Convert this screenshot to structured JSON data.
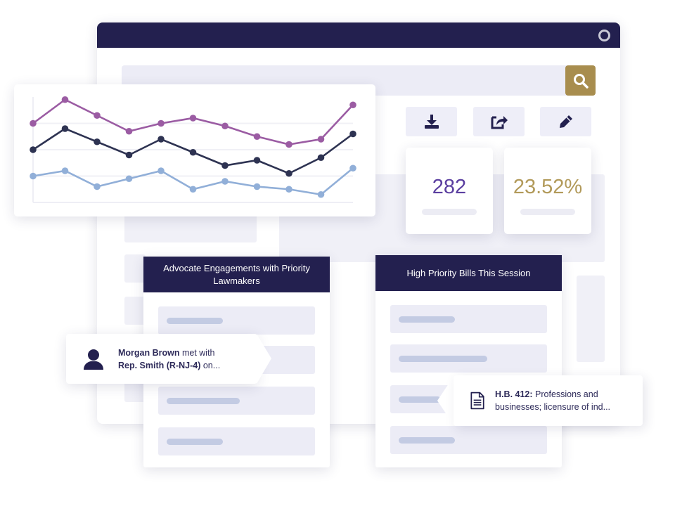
{
  "colors": {
    "navy": "#23204f",
    "gold": "#a88d4e",
    "purple": "#9b5ca3",
    "dark": "#2e3352",
    "light_blue": "#91afd8"
  },
  "window": {
    "logo": "app-logo-icon"
  },
  "search": {
    "icon": "search-icon"
  },
  "toolbar": {
    "icons": [
      "download-icon",
      "share-icon",
      "edit-icon"
    ]
  },
  "stats": [
    {
      "value": "282",
      "color": "#5b3fa0"
    },
    {
      "value": "23.52%",
      "color": "#b29a5a"
    }
  ],
  "chart_data": {
    "type": "line",
    "x": [
      1,
      2,
      3,
      4,
      5,
      6,
      7,
      8,
      9,
      10,
      11
    ],
    "ylim": [
      0,
      4
    ],
    "grid": true,
    "series": [
      {
        "color": "#9b5ca3",
        "values": [
          3.0,
          3.9,
          3.3,
          2.7,
          3.0,
          3.2,
          2.9,
          2.5,
          2.2,
          2.4,
          3.7
        ]
      },
      {
        "color": "#2e3352",
        "values": [
          2.0,
          2.8,
          2.3,
          1.8,
          2.4,
          1.9,
          1.4,
          1.6,
          1.1,
          1.7,
          2.6
        ]
      },
      {
        "color": "#91afd8",
        "values": [
          1.0,
          1.2,
          0.6,
          0.9,
          1.2,
          0.5,
          0.8,
          0.6,
          0.5,
          0.3,
          1.3
        ]
      }
    ]
  },
  "panels": [
    {
      "title": "Advocate Engagements with Priority Lawmakers"
    },
    {
      "title": "High Priority Bills This Session"
    }
  ],
  "tooltips": {
    "engagement": {
      "name": "Morgan Brown",
      "mid": " met with",
      "lawmaker": "Rep. Smith (R-NJ-4)",
      "tail": " on...",
      "icon": "person-icon"
    },
    "bill": {
      "id": "H.B. 412:",
      "text": " Professions and businesses; licensure of ind...",
      "icon": "document-icon"
    }
  }
}
